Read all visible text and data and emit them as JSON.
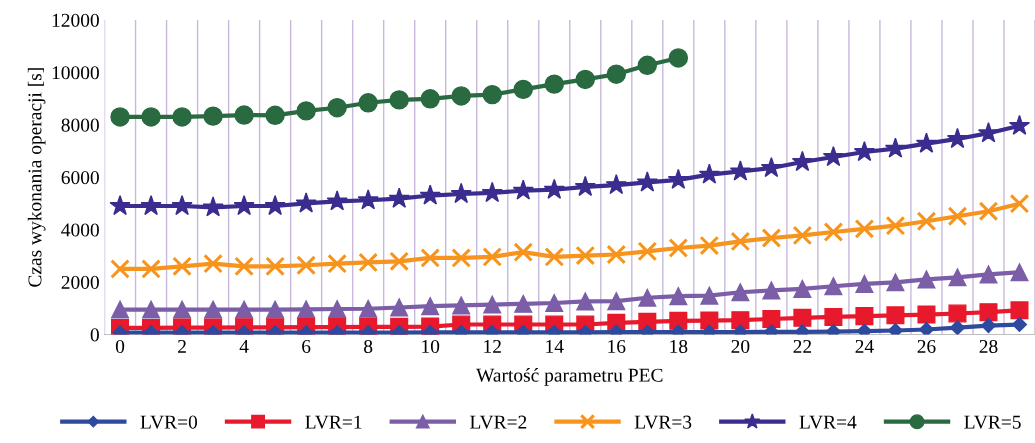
{
  "chart_data": {
    "type": "line",
    "xlabel": "Wartość parametru PEC",
    "ylabel": "Czas wykonania operacji [s]",
    "categories": [
      "0",
      null,
      "2",
      null,
      "4",
      null,
      "6",
      null,
      "8",
      null,
      "10",
      null,
      "12",
      null,
      "14",
      null,
      "16",
      null,
      "18",
      null,
      "20",
      null,
      "22",
      null,
      "24",
      null,
      "26",
      null,
      "28",
      null
    ],
    "ylim": [
      0,
      12000
    ],
    "yticks": [
      0,
      2000,
      4000,
      6000,
      8000,
      10000,
      12000
    ],
    "grid": "x",
    "legend": "bottom",
    "line_style": "solid",
    "series": [
      {
        "name": "LVR=0",
        "color": "#2e4a9e",
        "marker": "diamond",
        "values": [
          70,
          70,
          70,
          70,
          70,
          70,
          70,
          70,
          70,
          70,
          80,
          80,
          80,
          80,
          80,
          80,
          90,
          90,
          90,
          90,
          90,
          100,
          100,
          110,
          130,
          150,
          190,
          260,
          340,
          380
        ]
      },
      {
        "name": "LVR=1",
        "color": "#e8192c",
        "marker": "square",
        "values": [
          250,
          250,
          260,
          260,
          270,
          270,
          280,
          280,
          290,
          290,
          300,
          380,
          380,
          380,
          380,
          380,
          445,
          480,
          520,
          530,
          545,
          590,
          635,
          670,
          700,
          730,
          760,
          800,
          850,
          925
        ]
      },
      {
        "name": "LVR=2",
        "color": "#7b5ea7",
        "marker": "triangle",
        "values": [
          950,
          950,
          950,
          950,
          950,
          950,
          960,
          970,
          980,
          1030,
          1080,
          1110,
          1140,
          1170,
          1200,
          1260,
          1270,
          1400,
          1460,
          1480,
          1610,
          1680,
          1740,
          1840,
          1930,
          1990,
          2100,
          2180,
          2290,
          2370
        ]
      },
      {
        "name": "LVR=3",
        "color": "#f7941d",
        "marker": "cross",
        "values": [
          2500,
          2500,
          2600,
          2700,
          2600,
          2600,
          2640,
          2700,
          2750,
          2790,
          2920,
          2920,
          2960,
          3140,
          2960,
          3010,
          3050,
          3170,
          3300,
          3390,
          3550,
          3680,
          3780,
          3910,
          4030,
          4150,
          4320,
          4510,
          4700,
          4990
        ]
      },
      {
        "name": "LVR=4",
        "color": "#3a2d8f",
        "marker": "star",
        "values": [
          4900,
          4900,
          4900,
          4850,
          4900,
          4900,
          5000,
          5080,
          5120,
          5180,
          5300,
          5360,
          5400,
          5490,
          5520,
          5630,
          5700,
          5800,
          5900,
          6100,
          6220,
          6350,
          6580,
          6770,
          6960,
          7090,
          7280,
          7460,
          7680,
          7960
        ]
      },
      {
        "name": "LVR=5",
        "color": "#2a6a41",
        "marker": "circle",
        "values": [
          8300,
          8300,
          8300,
          8330,
          8370,
          8360,
          8530,
          8650,
          8840,
          8950,
          8990,
          9100,
          9150,
          9350,
          9550,
          9730,
          9930,
          10270,
          10550,
          null,
          null,
          null,
          null,
          null,
          null,
          null,
          null,
          null,
          null,
          null
        ]
      }
    ]
  }
}
